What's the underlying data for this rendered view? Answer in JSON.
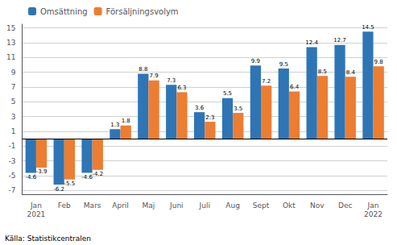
{
  "chart_data": {
    "type": "bar",
    "categories": [
      "Jan\n2021",
      "Feb",
      "Mars",
      "April",
      "Maj",
      "Juni",
      "Juli",
      "Aug",
      "Sept",
      "Okt",
      "Nov",
      "Dec",
      "Jan\n2022"
    ],
    "series": [
      {
        "name": "Omsättning",
        "color": "#2E75B6",
        "values": [
          -4.6,
          -6.2,
          -4.6,
          1.3,
          8.8,
          7.3,
          3.6,
          5.5,
          9.9,
          9.5,
          12.4,
          12.7,
          14.5
        ]
      },
      {
        "name": "Försäljningsvolym",
        "color": "#ED7D31",
        "values": [
          -3.9,
          -5.5,
          -4.2,
          1.8,
          7.9,
          6.3,
          2.3,
          3.5,
          7.2,
          6.4,
          8.5,
          8.4,
          9.8
        ]
      }
    ],
    "ylim": [
      -7.5,
      15.5
    ],
    "yticks": [
      -7,
      -5,
      -3,
      -1,
      1,
      3,
      5,
      7,
      9,
      11,
      13,
      15
    ],
    "grid": true,
    "legend": "upper left",
    "data_labels": true,
    "annotations": [
      "Källa: Statistikcentralen"
    ]
  }
}
